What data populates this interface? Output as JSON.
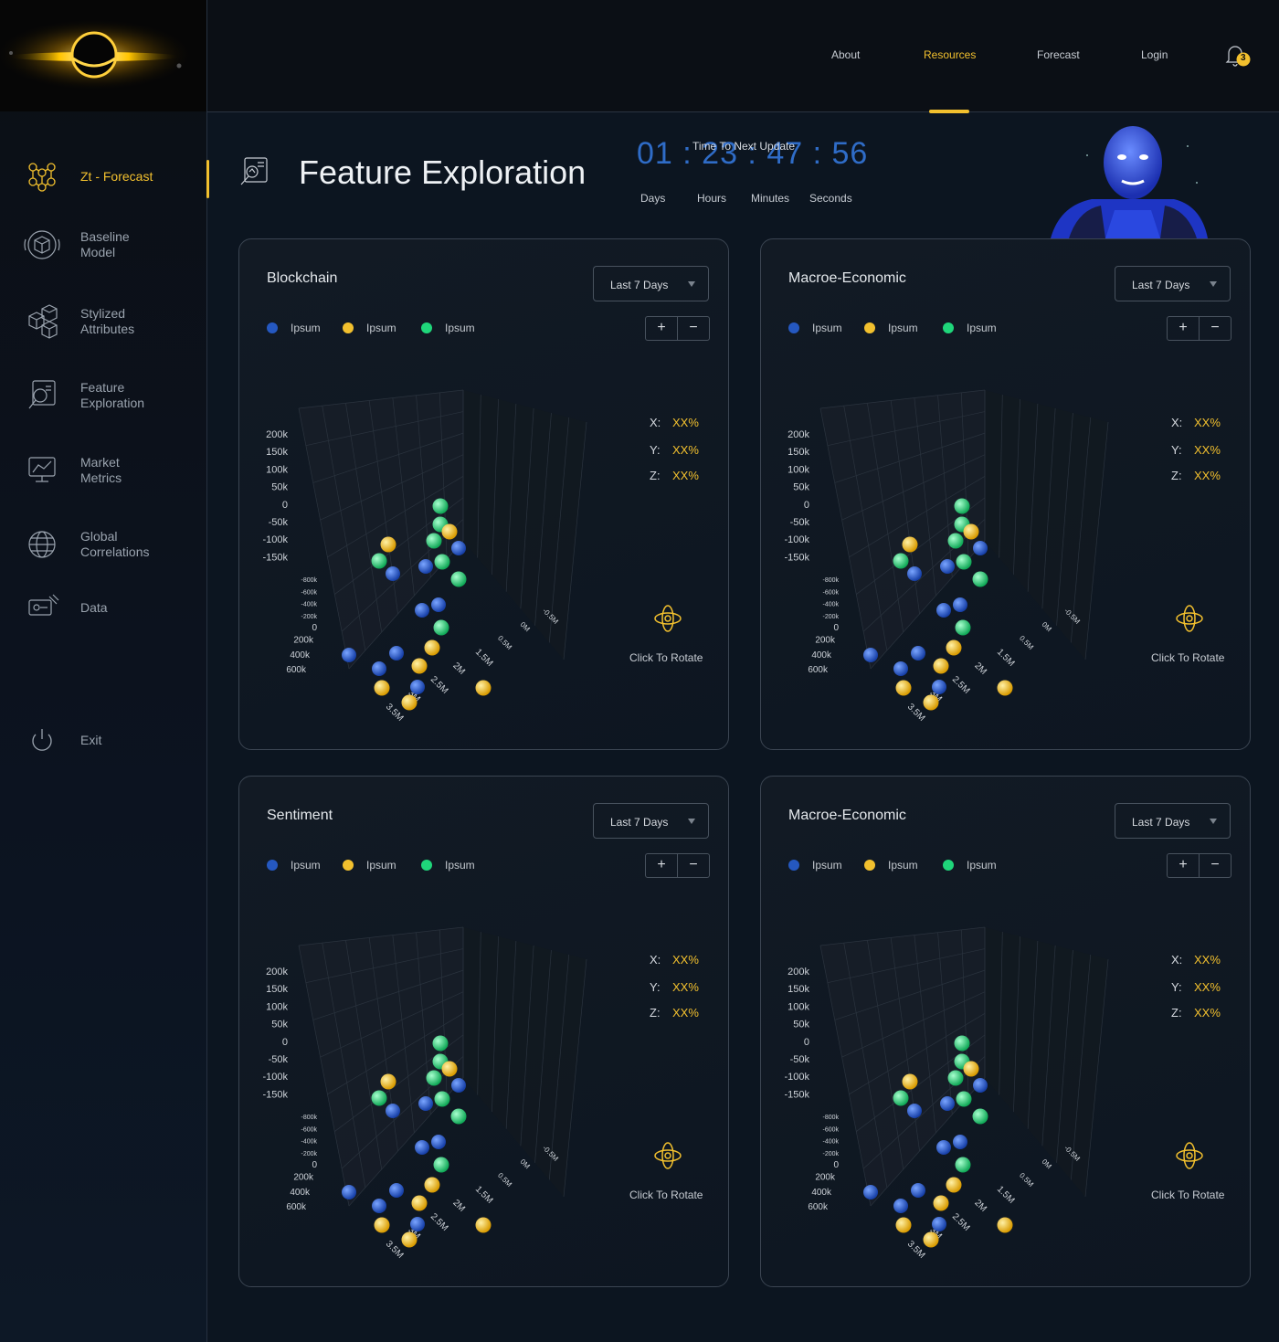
{
  "nav": {
    "top_links": [
      {
        "label": "About"
      },
      {
        "label": "Resources",
        "active": true
      },
      {
        "label": "Forecast"
      },
      {
        "label": "Login"
      }
    ],
    "notification_count": "3"
  },
  "sidebar": {
    "items": [
      {
        "label": "Zt - Forecast",
        "icon": "network-nodes-icon",
        "active": true
      },
      {
        "label": "Baseline\nModel",
        "icon": "cube-icon"
      },
      {
        "label": "Stylized\nAttributes",
        "icon": "blocks-icon"
      },
      {
        "label": "Feature\nExploration",
        "icon": "magnifier-chart-icon"
      },
      {
        "label": "Market\nMetrics",
        "icon": "monitor-chart-icon"
      },
      {
        "label": "Global\nCorrelations",
        "icon": "globe-icon"
      },
      {
        "label": "Data",
        "icon": "data-icon"
      }
    ],
    "exit_label": "Exit"
  },
  "page": {
    "title": "Feature Exploration"
  },
  "timer": {
    "caption": "Time To Next Update",
    "digits": "01 : 23 : 47 : 56",
    "labels": [
      "Days",
      "Hours",
      "Minutes",
      "Seconds"
    ]
  },
  "colors": {
    "accent": "#f2c02e",
    "blue": "#2558c0",
    "yellow": "#f2c02e",
    "green": "#1fd67a"
  },
  "cards": [
    {
      "title": "Blockchain",
      "range": "Last 7 Days",
      "legend": [
        "Ipsum",
        "Ipsum",
        "Ipsum"
      ],
      "zoom_in": "+",
      "zoom_out": "−",
      "coords": [
        {
          "axis": "X:",
          "value": "XX%"
        },
        {
          "axis": "Y:",
          "value": "XX%"
        },
        {
          "axis": "Z:",
          "value": "XX%"
        }
      ],
      "rotate_label": "Click To Rotate"
    },
    {
      "title": "Macroe-Economic",
      "range": "Last 7 Days",
      "legend": [
        "Ipsum",
        "Ipsum",
        "Ipsum"
      ],
      "zoom_in": "+",
      "zoom_out": "−",
      "coords": [
        {
          "axis": "X:",
          "value": "XX%"
        },
        {
          "axis": "Y:",
          "value": "XX%"
        },
        {
          "axis": "Z:",
          "value": "XX%"
        }
      ],
      "rotate_label": "Click To Rotate"
    },
    {
      "title": "Sentiment",
      "range": "Last 7 Days",
      "legend": [
        "Ipsum",
        "Ipsum",
        "Ipsum"
      ],
      "zoom_in": "+",
      "zoom_out": "−",
      "coords": [
        {
          "axis": "X:",
          "value": "XX%"
        },
        {
          "axis": "Y:",
          "value": "XX%"
        },
        {
          "axis": "Z:",
          "value": "XX%"
        }
      ],
      "rotate_label": "Click To Rotate"
    },
    {
      "title": "Macroe-Economic",
      "range": "Last 7 Days",
      "legend": [
        "Ipsum",
        "Ipsum",
        "Ipsum"
      ],
      "zoom_in": "+",
      "zoom_out": "−",
      "coords": [
        {
          "axis": "X:",
          "value": "XX%"
        },
        {
          "axis": "Y:",
          "value": "XX%"
        },
        {
          "axis": "Z:",
          "value": "XX%"
        }
      ],
      "rotate_label": "Click To Rotate"
    }
  ],
  "chart_data": {
    "type": "scatter",
    "dimensions": 3,
    "y_tick_labels": [
      "200k",
      "150k",
      "100k",
      "50k",
      "0",
      "-50k",
      "-100k",
      "-150k"
    ],
    "z_tick_labels": [
      "-800k",
      "-600k",
      "-400k",
      "-200k",
      "0",
      "200k",
      "400k",
      "600k"
    ],
    "x_tick_labels": [
      "3.5M",
      "3M",
      "2.5M",
      "2M",
      "1.5M",
      "0.5M",
      "0M",
      "-0.5M"
    ],
    "series_colors": [
      "#2558c0",
      "#f2c02e",
      "#1fd67a"
    ]
  }
}
